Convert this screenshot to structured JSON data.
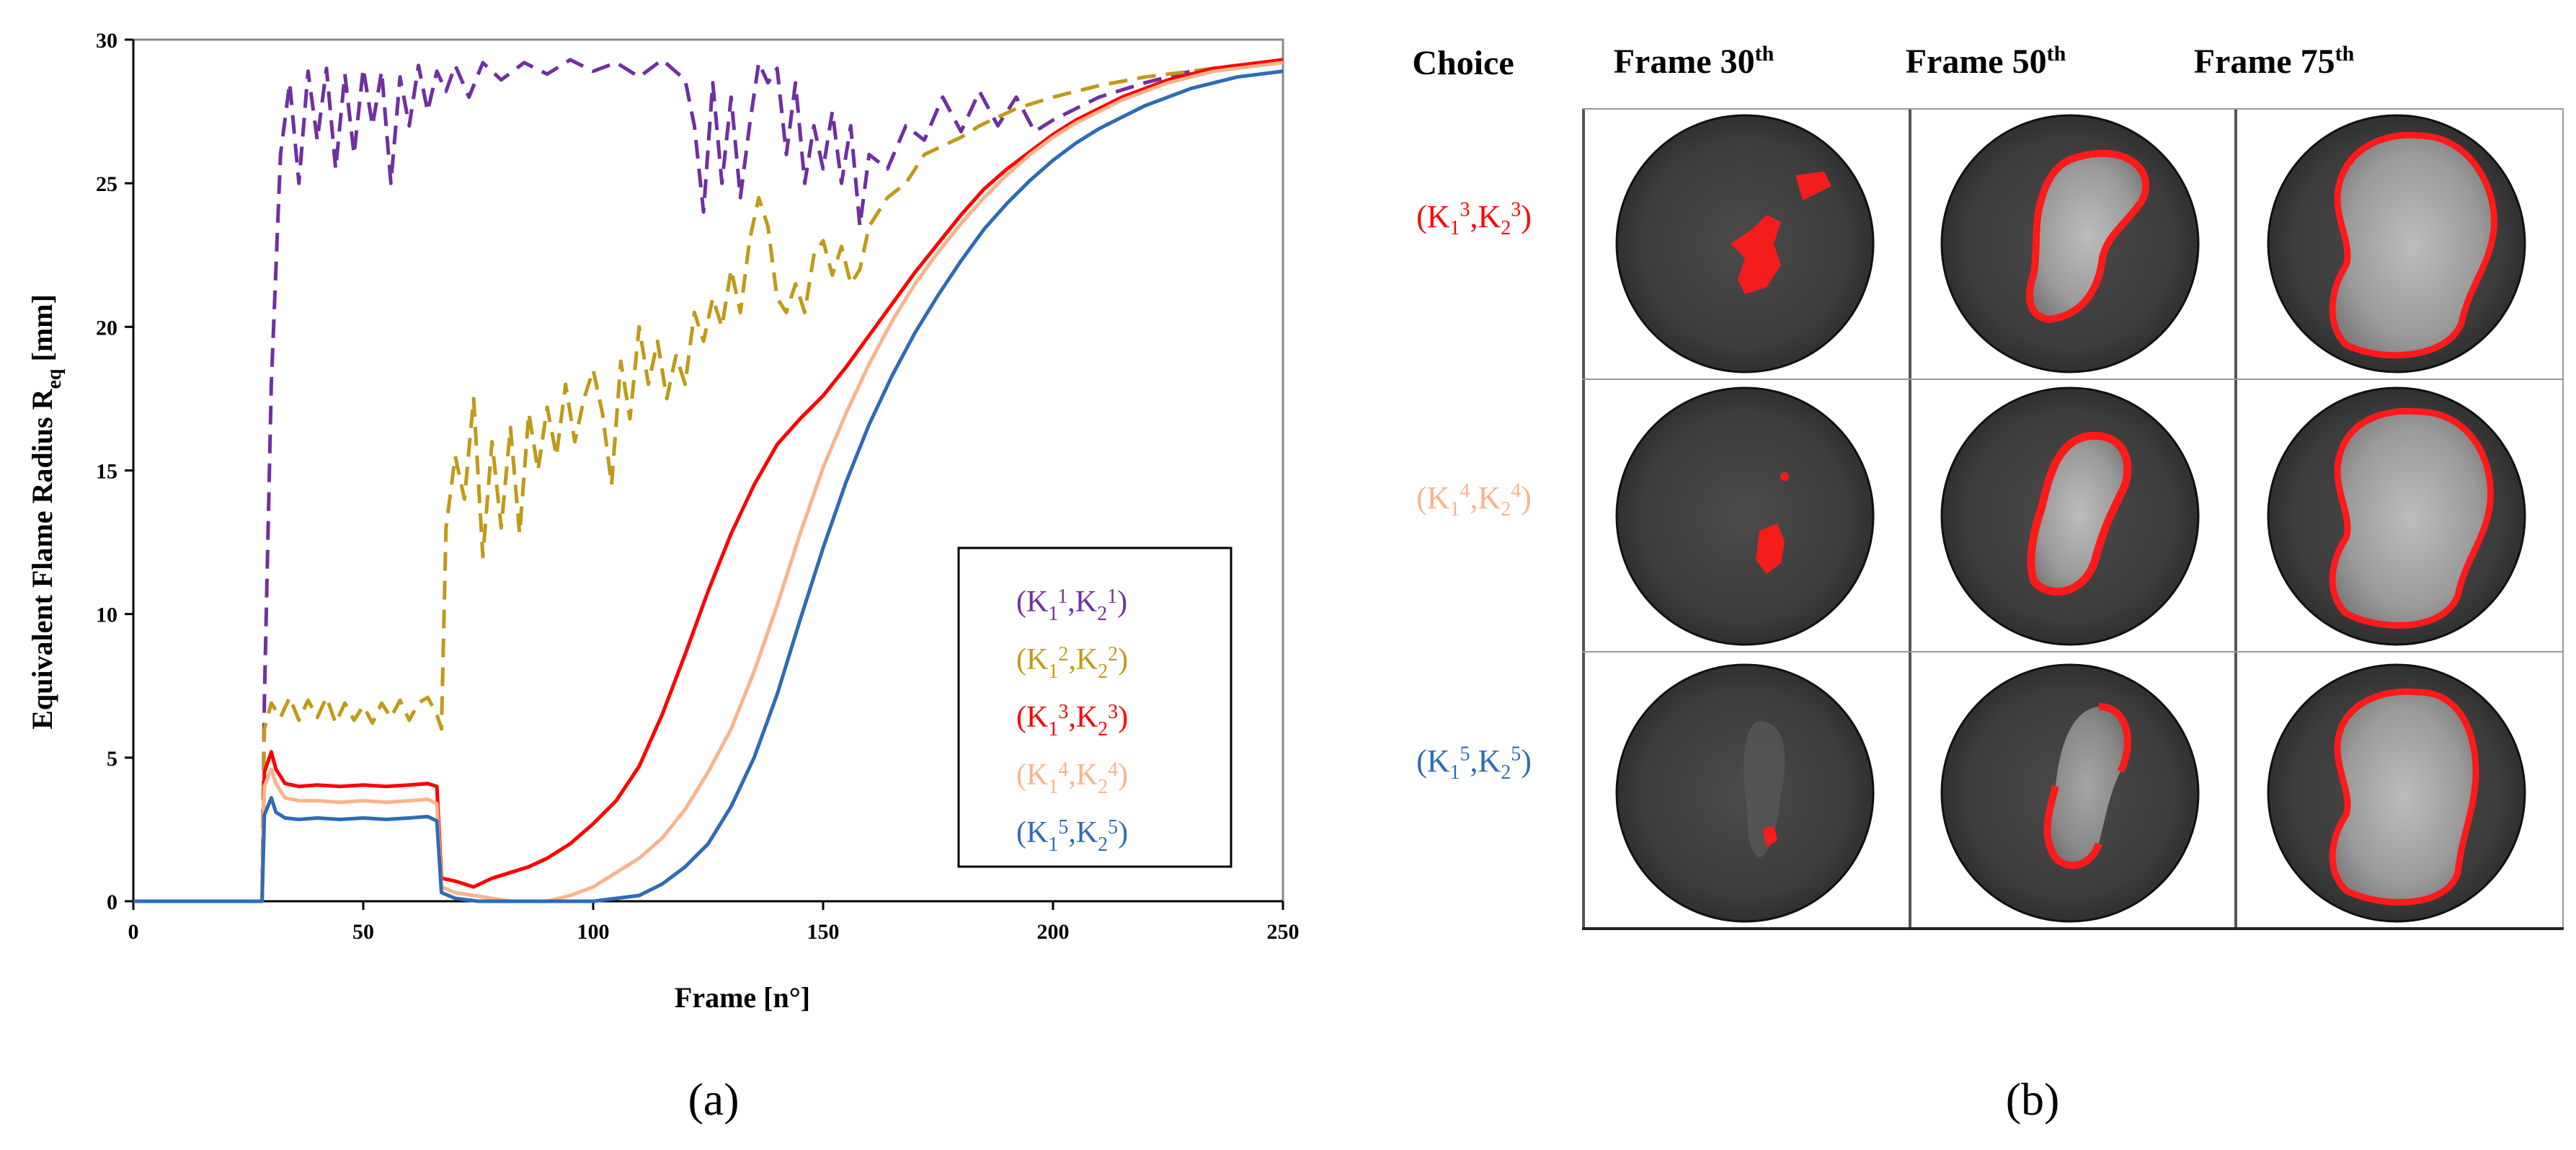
{
  "chart_data": {
    "type": "line",
    "title": "",
    "xlabel": "Frame [n°]",
    "ylabel": "Equivalent Flame Radius R_eq [mm]",
    "ylabel_main": "Equivalent Flame Radius R",
    "ylabel_sub": "eq",
    "ylabel_unit": "[mm]",
    "xlim": [
      0,
      250
    ],
    "ylim": [
      0,
      30
    ],
    "xticks": [
      "0",
      "50",
      "100",
      "150",
      "200",
      "250"
    ],
    "yticks": [
      "0",
      "5",
      "10",
      "15",
      "20",
      "25",
      "30"
    ],
    "legend_position": "bottom-right",
    "series": [
      {
        "name": "(K1^1,K2^1)",
        "k": "1",
        "color": "#7030a0",
        "dash": true,
        "points": [
          [
            0,
            0
          ],
          [
            28,
            0
          ],
          [
            28.5,
            7
          ],
          [
            30,
            18
          ],
          [
            32,
            26
          ],
          [
            34,
            28.5
          ],
          [
            36,
            25
          ],
          [
            38,
            28.9
          ],
          [
            40,
            26.5
          ],
          [
            42,
            29
          ],
          [
            44,
            25.5
          ],
          [
            46,
            28.8
          ],
          [
            48,
            26
          ],
          [
            50,
            29
          ],
          [
            52,
            27
          ],
          [
            54,
            28.9
          ],
          [
            56,
            25
          ],
          [
            58,
            28.7
          ],
          [
            60,
            27
          ],
          [
            62,
            29.1
          ],
          [
            64,
            27.5
          ],
          [
            66,
            28.9
          ],
          [
            68,
            28.2
          ],
          [
            70,
            29.1
          ],
          [
            73,
            28
          ],
          [
            76,
            29.2
          ],
          [
            80,
            28.6
          ],
          [
            85,
            29.2
          ],
          [
            90,
            28.8
          ],
          [
            95,
            29.3
          ],
          [
            100,
            28.9
          ],
          [
            105,
            29.2
          ],
          [
            110,
            28.7
          ],
          [
            115,
            29.3
          ],
          [
            120,
            28.6
          ],
          [
            122,
            27
          ],
          [
            124,
            24
          ],
          [
            126,
            28.5
          ],
          [
            128,
            25
          ],
          [
            130,
            28
          ],
          [
            132,
            24.5
          ],
          [
            134,
            27
          ],
          [
            136,
            29.2
          ],
          [
            138,
            28.5
          ],
          [
            140,
            29
          ],
          [
            142,
            26
          ],
          [
            144,
            28.5
          ],
          [
            146,
            25
          ],
          [
            148,
            27
          ],
          [
            150,
            25.5
          ],
          [
            152,
            27.5
          ],
          [
            154,
            25
          ],
          [
            156,
            27
          ],
          [
            158,
            23.5
          ],
          [
            160,
            26
          ],
          [
            164,
            25.5
          ],
          [
            168,
            27
          ],
          [
            172,
            26.5
          ],
          [
            176,
            28
          ],
          [
            180,
            26.8
          ],
          [
            184,
            28.2
          ],
          [
            188,
            27
          ],
          [
            192,
            28
          ],
          [
            196,
            26.8
          ],
          [
            200,
            27.2
          ],
          [
            210,
            28
          ],
          [
            220,
            28.5
          ],
          [
            230,
            28.9
          ],
          [
            240,
            29.1
          ],
          [
            250,
            29.2
          ]
        ]
      },
      {
        "name": "(K1^2,K2^2)",
        "k": "2",
        "color": "#c09a18",
        "dash": true,
        "points": [
          [
            0,
            0
          ],
          [
            28,
            0
          ],
          [
            28.5,
            6
          ],
          [
            30,
            6.9
          ],
          [
            32,
            6.4
          ],
          [
            34,
            7.1
          ],
          [
            36,
            6.3
          ],
          [
            38,
            7
          ],
          [
            40,
            6.4
          ],
          [
            42,
            7.1
          ],
          [
            44,
            6.2
          ],
          [
            46,
            6.9
          ],
          [
            48,
            6.3
          ],
          [
            50,
            6.8
          ],
          [
            52,
            6.2
          ],
          [
            54,
            6.9
          ],
          [
            56,
            6.4
          ],
          [
            58,
            7
          ],
          [
            60,
            6.3
          ],
          [
            62,
            6.9
          ],
          [
            64,
            7.1
          ],
          [
            66,
            6.5
          ],
          [
            67,
            6
          ],
          [
            68,
            13
          ],
          [
            70,
            15.5
          ],
          [
            72,
            14
          ],
          [
            74,
            17.5
          ],
          [
            76,
            12
          ],
          [
            78,
            16
          ],
          [
            80,
            13
          ],
          [
            82,
            16.5
          ],
          [
            84,
            12.8
          ],
          [
            86,
            17
          ],
          [
            88,
            15
          ],
          [
            90,
            17.2
          ],
          [
            92,
            15.5
          ],
          [
            94,
            18
          ],
          [
            96,
            16
          ],
          [
            98,
            17.5
          ],
          [
            100,
            18.5
          ],
          [
            102,
            17
          ],
          [
            104,
            14.5
          ],
          [
            106,
            18.8
          ],
          [
            108,
            16.8
          ],
          [
            110,
            20
          ],
          [
            112,
            18
          ],
          [
            114,
            19.5
          ],
          [
            116,
            17.5
          ],
          [
            118,
            19
          ],
          [
            120,
            18
          ],
          [
            122,
            20.5
          ],
          [
            124,
            19.5
          ],
          [
            126,
            21
          ],
          [
            128,
            20
          ],
          [
            130,
            22
          ],
          [
            132,
            20.5
          ],
          [
            134,
            23
          ],
          [
            136,
            24.5
          ],
          [
            138,
            23.5
          ],
          [
            140,
            21
          ],
          [
            142,
            20.5
          ],
          [
            144,
            21.5
          ],
          [
            146,
            20.5
          ],
          [
            148,
            22.5
          ],
          [
            150,
            23
          ],
          [
            152,
            21.8
          ],
          [
            154,
            22.8
          ],
          [
            156,
            21.5
          ],
          [
            158,
            22
          ],
          [
            160,
            23.5
          ],
          [
            164,
            24.5
          ],
          [
            168,
            25
          ],
          [
            172,
            26
          ],
          [
            176,
            26.3
          ],
          [
            180,
            26.6
          ],
          [
            184,
            27
          ],
          [
            188,
            27.3
          ],
          [
            192,
            27.6
          ],
          [
            196,
            27.8
          ],
          [
            200,
            28
          ],
          [
            210,
            28.4
          ],
          [
            220,
            28.7
          ],
          [
            230,
            28.9
          ],
          [
            240,
            29.1
          ],
          [
            250,
            29.3
          ]
        ]
      },
      {
        "name": "(K1^3,K2^3)",
        "k": "3",
        "color": "#ff0000",
        "dash": false,
        "points": [
          [
            0,
            0
          ],
          [
            28,
            0
          ],
          [
            28.5,
            4.5
          ],
          [
            30,
            5.2
          ],
          [
            31,
            4.6
          ],
          [
            33,
            4.1
          ],
          [
            36,
            4
          ],
          [
            40,
            4.05
          ],
          [
            45,
            4
          ],
          [
            50,
            4.05
          ],
          [
            55,
            4
          ],
          [
            60,
            4.05
          ],
          [
            64,
            4.1
          ],
          [
            66,
            4
          ],
          [
            67,
            0.8
          ],
          [
            70,
            0.7
          ],
          [
            74,
            0.5
          ],
          [
            78,
            0.8
          ],
          [
            82,
            1
          ],
          [
            86,
            1.2
          ],
          [
            90,
            1.5
          ],
          [
            95,
            2
          ],
          [
            100,
            2.7
          ],
          [
            105,
            3.5
          ],
          [
            110,
            4.7
          ],
          [
            115,
            6.5
          ],
          [
            120,
            8.6
          ],
          [
            125,
            10.8
          ],
          [
            130,
            12.8
          ],
          [
            135,
            14.5
          ],
          [
            140,
            15.9
          ],
          [
            145,
            16.8
          ],
          [
            150,
            17.6
          ],
          [
            155,
            18.6
          ],
          [
            160,
            19.7
          ],
          [
            165,
            20.8
          ],
          [
            170,
            21.9
          ],
          [
            175,
            22.9
          ],
          [
            180,
            23.9
          ],
          [
            185,
            24.8
          ],
          [
            190,
            25.5
          ],
          [
            195,
            26.1
          ],
          [
            200,
            26.7
          ],
          [
            205,
            27.2
          ],
          [
            210,
            27.6
          ],
          [
            215,
            28
          ],
          [
            220,
            28.3
          ],
          [
            225,
            28.6
          ],
          [
            230,
            28.8
          ],
          [
            235,
            29
          ],
          [
            240,
            29.1
          ],
          [
            245,
            29.2
          ],
          [
            250,
            29.3
          ]
        ]
      },
      {
        "name": "(K1^4,K2^4)",
        "k": "4",
        "color": "#f8b48c",
        "dash": false,
        "points": [
          [
            0,
            0
          ],
          [
            28,
            0
          ],
          [
            28.5,
            4
          ],
          [
            30,
            4.6
          ],
          [
            31,
            4.1
          ],
          [
            33,
            3.6
          ],
          [
            36,
            3.5
          ],
          [
            40,
            3.5
          ],
          [
            45,
            3.45
          ],
          [
            50,
            3.5
          ],
          [
            55,
            3.45
          ],
          [
            60,
            3.5
          ],
          [
            64,
            3.55
          ],
          [
            66,
            3.4
          ],
          [
            67,
            0.5
          ],
          [
            70,
            0.3
          ],
          [
            74,
            0.2
          ],
          [
            78,
            0.1
          ],
          [
            82,
            0
          ],
          [
            90,
            0
          ],
          [
            95,
            0.2
          ],
          [
            100,
            0.5
          ],
          [
            105,
            1
          ],
          [
            110,
            1.5
          ],
          [
            115,
            2.2
          ],
          [
            120,
            3.2
          ],
          [
            125,
            4.5
          ],
          [
            130,
            6
          ],
          [
            135,
            8
          ],
          [
            140,
            10.3
          ],
          [
            145,
            12.8
          ],
          [
            150,
            15.1
          ],
          [
            155,
            17
          ],
          [
            160,
            18.7
          ],
          [
            165,
            20.2
          ],
          [
            170,
            21.5
          ],
          [
            175,
            22.6
          ],
          [
            180,
            23.6
          ],
          [
            185,
            24.5
          ],
          [
            190,
            25.3
          ],
          [
            195,
            26
          ],
          [
            200,
            26.6
          ],
          [
            205,
            27.1
          ],
          [
            210,
            27.5
          ],
          [
            215,
            27.9
          ],
          [
            220,
            28.2
          ],
          [
            225,
            28.5
          ],
          [
            230,
            28.7
          ],
          [
            235,
            28.9
          ],
          [
            240,
            29
          ],
          [
            245,
            29.1
          ],
          [
            250,
            29.2
          ]
        ]
      },
      {
        "name": "(K1^5,K2^5)",
        "k": "5",
        "color": "#2e6bb5",
        "dash": false,
        "points": [
          [
            0,
            0
          ],
          [
            28,
            0
          ],
          [
            28.5,
            3
          ],
          [
            30,
            3.6
          ],
          [
            31,
            3.1
          ],
          [
            33,
            2.9
          ],
          [
            36,
            2.85
          ],
          [
            40,
            2.9
          ],
          [
            45,
            2.85
          ],
          [
            50,
            2.9
          ],
          [
            55,
            2.85
          ],
          [
            60,
            2.9
          ],
          [
            64,
            2.95
          ],
          [
            66,
            2.8
          ],
          [
            67,
            0.3
          ],
          [
            70,
            0.1
          ],
          [
            75,
            0
          ],
          [
            100,
            0
          ],
          [
            105,
            0.1
          ],
          [
            110,
            0.2
          ],
          [
            115,
            0.6
          ],
          [
            120,
            1.2
          ],
          [
            125,
            2
          ],
          [
            130,
            3.3
          ],
          [
            135,
            5
          ],
          [
            140,
            7.2
          ],
          [
            145,
            9.8
          ],
          [
            150,
            12.3
          ],
          [
            155,
            14.6
          ],
          [
            160,
            16.6
          ],
          [
            165,
            18.3
          ],
          [
            170,
            19.8
          ],
          [
            175,
            21.1
          ],
          [
            180,
            22.3
          ],
          [
            185,
            23.4
          ],
          [
            190,
            24.3
          ],
          [
            195,
            25.1
          ],
          [
            200,
            25.8
          ],
          [
            205,
            26.4
          ],
          [
            210,
            26.9
          ],
          [
            215,
            27.3
          ],
          [
            220,
            27.7
          ],
          [
            225,
            28
          ],
          [
            230,
            28.3
          ],
          [
            235,
            28.5
          ],
          [
            240,
            28.7
          ],
          [
            245,
            28.8
          ],
          [
            250,
            28.9
          ]
        ]
      }
    ]
  },
  "panel_a_label": "(a)",
  "panel_b_label": "(b)",
  "grid": {
    "choice_header": "Choice",
    "columns": [
      {
        "label": "Frame 30",
        "sup": "th"
      },
      {
        "label": "Frame 50",
        "sup": "th"
      },
      {
        "label": "Frame 75",
        "sup": "th"
      }
    ],
    "rows": [
      {
        "k": "3",
        "color": "#ff0000"
      },
      {
        "k": "4",
        "color": "#f8b48c"
      },
      {
        "k": "5",
        "color": "#2e6bb5"
      }
    ]
  },
  "colors": {
    "flame_contour": "#ff1a1a",
    "disk": "#3b3b3b"
  }
}
